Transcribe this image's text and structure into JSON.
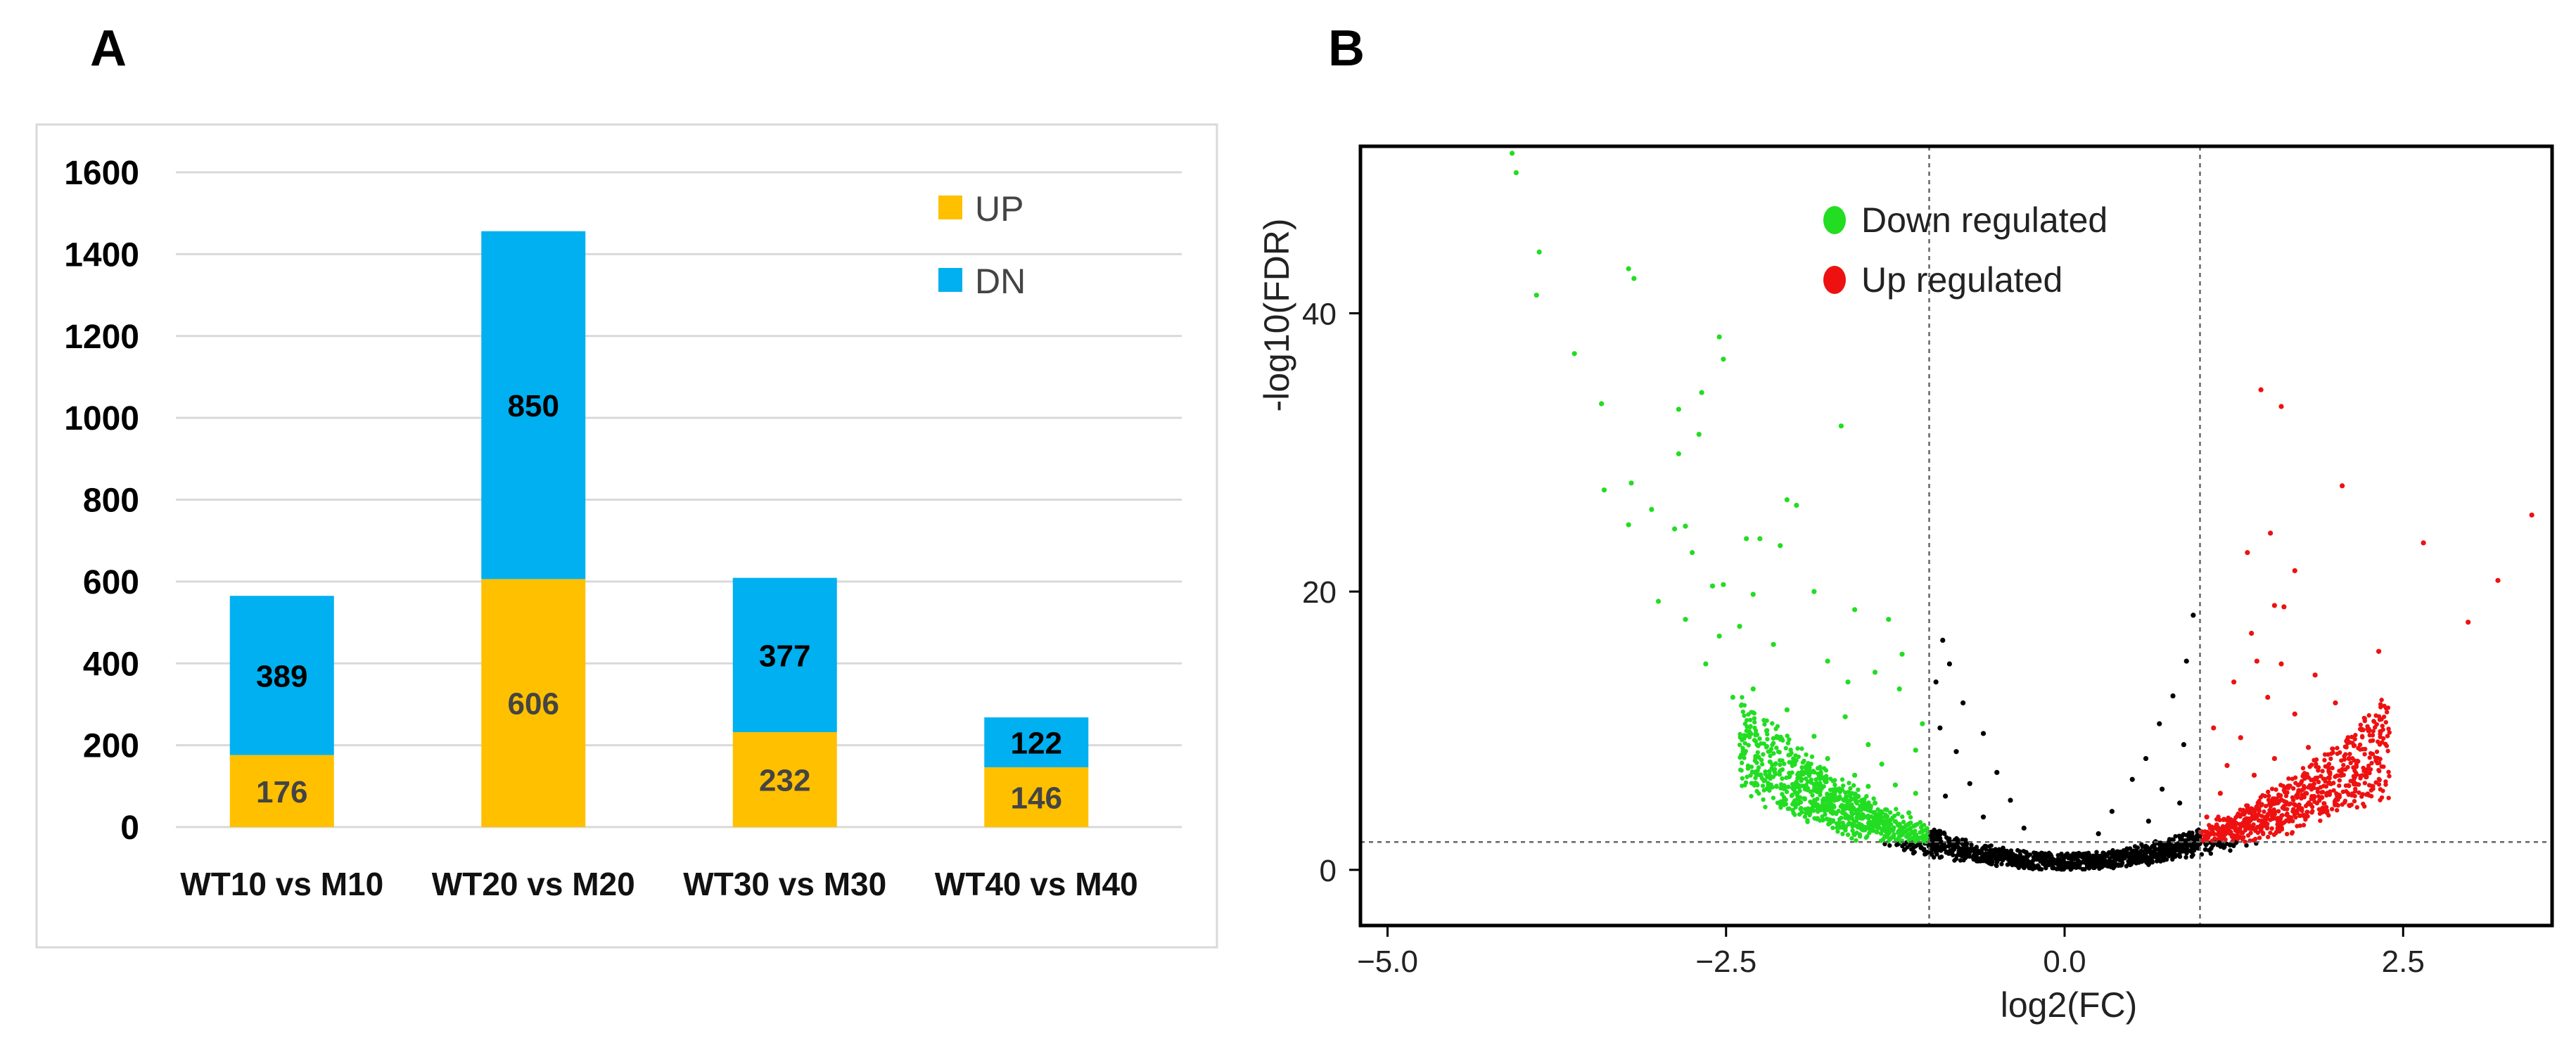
{
  "panels": {
    "a_label": "A",
    "b_label": "B"
  },
  "colors": {
    "up": "#FFC000",
    "dn": "#00B0F0",
    "down_regulated": "#22dd22",
    "up_regulated": "#ee1111",
    "neutral": "#000000"
  },
  "chart_data": [
    {
      "type": "bar",
      "stacked": true,
      "categories": [
        "WT10 vs M10",
        "WT20 vs M20",
        "WT30 vs M30",
        "WT40 vs M40"
      ],
      "series": [
        {
          "name": "UP",
          "values": [
            176,
            606,
            232,
            146
          ]
        },
        {
          "name": "DN",
          "values": [
            389,
            850,
            377,
            122
          ]
        }
      ],
      "ylim": [
        0,
        1600
      ],
      "yticks": [
        "0",
        "200",
        "400",
        "600",
        "800",
        "1000",
        "1200",
        "1400",
        "1600"
      ],
      "grid": true,
      "legend_position": "top-right"
    },
    {
      "type": "scatter",
      "title": "",
      "xlabel": "log2(FC)",
      "ylabel": "-log10(FDR)",
      "xlim": [
        -5.2,
        3.6
      ],
      "ylim": [
        -4,
        52
      ],
      "xticks": [
        "−5.0",
        "−2.5",
        "0.0",
        "2.5"
      ],
      "yticks": [
        "0",
        "20",
        "40"
      ],
      "thresholds": {
        "log2fc": [
          -1,
          1
        ],
        "neg_log10_fdr": 2
      },
      "legend": [
        "Down regulated",
        "Up regulated"
      ],
      "legend_position": "top-center",
      "series": [
        {
          "name": "Down regulated",
          "points": [
            [
              -4.08,
              51.5
            ],
            [
              -4.05,
              50.1
            ],
            [
              -3.88,
              44.4
            ],
            [
              -3.9,
              41.3
            ],
            [
              -3.62,
              37.1
            ],
            [
              -3.42,
              33.5
            ],
            [
              -3.22,
              43.2
            ],
            [
              -3.18,
              42.5
            ],
            [
              -2.55,
              38.3
            ],
            [
              -2.52,
              36.7
            ],
            [
              -2.68,
              34.3
            ],
            [
              -1.65,
              31.9
            ],
            [
              -2.85,
              33.1
            ],
            [
              -2.7,
              31.3
            ],
            [
              -2.85,
              29.9
            ],
            [
              -3.4,
              27.3
            ],
            [
              -3.2,
              27.8
            ],
            [
              -3.05,
              25.9
            ],
            [
              -3.22,
              24.8
            ],
            [
              -2.88,
              24.5
            ],
            [
              -2.8,
              24.7
            ],
            [
              -2.05,
              26.6
            ],
            [
              -1.98,
              26.2
            ],
            [
              -2.35,
              23.8
            ],
            [
              -2.25,
              23.8
            ],
            [
              -2.1,
              23.3
            ],
            [
              -2.75,
              22.8
            ],
            [
              -2.6,
              20.4
            ],
            [
              -2.52,
              20.5
            ],
            [
              -2.3,
              19.8
            ],
            [
              -1.85,
              20.0
            ],
            [
              -3.0,
              19.3
            ],
            [
              -1.55,
              18.7
            ],
            [
              -1.3,
              18.0
            ],
            [
              -2.4,
              17.5
            ],
            [
              -2.15,
              16.2
            ],
            [
              -1.75,
              15.0
            ],
            [
              -2.65,
              14.8
            ],
            [
              -1.4,
              14.2
            ],
            [
              -1.22,
              13.0
            ],
            [
              -2.45,
              12.4
            ],
            [
              -2.05,
              11.5
            ],
            [
              -1.62,
              11.0
            ],
            [
              -2.2,
              10.0
            ],
            [
              -1.85,
              9.6
            ],
            [
              -1.45,
              9.0
            ],
            [
              -1.1,
              8.6
            ],
            [
              -1.9,
              7.5
            ],
            [
              -1.55,
              6.8
            ],
            [
              -1.25,
              6.1
            ],
            [
              -2.0,
              5.8
            ],
            [
              -1.7,
              5.4
            ],
            [
              -1.4,
              4.8
            ],
            [
              -1.15,
              4.1
            ],
            [
              -1.62,
              4.0
            ],
            [
              -1.3,
              3.5
            ],
            [
              -1.85,
              4.6
            ],
            [
              -1.05,
              2.8
            ],
            [
              -1.2,
              3.0
            ],
            [
              -1.5,
              3.2
            ],
            [
              -2.55,
              16.8
            ],
            [
              -2.8,
              18.0
            ],
            [
              -1.2,
              15.5
            ],
            [
              -1.6,
              13.5
            ],
            [
              -2.3,
              13.0
            ],
            [
              -1.05,
              10.5
            ],
            [
              -1.35,
              7.6
            ],
            [
              -1.75,
              8.0
            ],
            [
              -1.1,
              5.5
            ],
            [
              -1.45,
              6.0
            ]
          ]
        },
        {
          "name": "Up regulated",
          "points": [
            [
              1.45,
              34.5
            ],
            [
              1.6,
              33.3
            ],
            [
              2.05,
              27.6
            ],
            [
              2.65,
              23.5
            ],
            [
              3.45,
              25.5
            ],
            [
              3.2,
              20.8
            ],
            [
              2.98,
              17.8
            ],
            [
              1.52,
              24.2
            ],
            [
              1.35,
              22.8
            ],
            [
              1.7,
              21.5
            ],
            [
              1.55,
              19.0
            ],
            [
              1.62,
              18.9
            ],
            [
              1.38,
              17.0
            ],
            [
              2.32,
              15.7
            ],
            [
              1.42,
              15.0
            ],
            [
              1.85,
              14.0
            ],
            [
              1.25,
              13.5
            ],
            [
              1.5,
              12.4
            ],
            [
              2.0,
              12.0
            ],
            [
              1.7,
              11.2
            ],
            [
              2.25,
              10.0
            ],
            [
              1.1,
              10.2
            ],
            [
              1.3,
              9.5
            ],
            [
              1.8,
              8.8
            ],
            [
              1.55,
              8.0
            ],
            [
              1.2,
              7.5
            ],
            [
              2.05,
              7.2
            ],
            [
              1.4,
              6.8
            ],
            [
              1.65,
              6.0
            ],
            [
              1.15,
              5.5
            ],
            [
              1.9,
              5.2
            ],
            [
              1.35,
              4.6
            ],
            [
              1.05,
              3.8
            ],
            [
              1.25,
              3.2
            ],
            [
              1.55,
              4.0
            ],
            [
              1.1,
              2.6
            ],
            [
              1.45,
              2.9
            ],
            [
              1.75,
              4.4
            ],
            [
              2.1,
              8.0
            ],
            [
              1.6,
              14.8
            ]
          ]
        },
        {
          "name": "Not significant",
          "points": [
            [
              -0.95,
              13.5
            ],
            [
              -0.9,
              16.5
            ],
            [
              -0.85,
              14.8
            ],
            [
              -0.75,
              12.0
            ],
            [
              -0.6,
              9.8
            ],
            [
              -0.92,
              10.2
            ],
            [
              -0.8,
              8.5
            ],
            [
              0.95,
              18.3
            ],
            [
              0.9,
              15.0
            ],
            [
              0.8,
              12.5
            ],
            [
              0.7,
              10.5
            ],
            [
              0.88,
              9.0
            ],
            [
              0.6,
              8.0
            ],
            [
              -0.5,
              7.0
            ],
            [
              0.5,
              6.5
            ],
            [
              -0.7,
              6.2
            ],
            [
              0.72,
              5.8
            ],
            [
              -0.4,
              5.0
            ],
            [
              0.35,
              4.2
            ],
            [
              -0.88,
              5.3
            ],
            [
              0.85,
              4.8
            ],
            [
              -0.3,
              3.0
            ],
            [
              0.25,
              2.6
            ],
            [
              -0.6,
              3.8
            ],
            [
              0.62,
              3.5
            ]
          ]
        }
      ]
    }
  ]
}
